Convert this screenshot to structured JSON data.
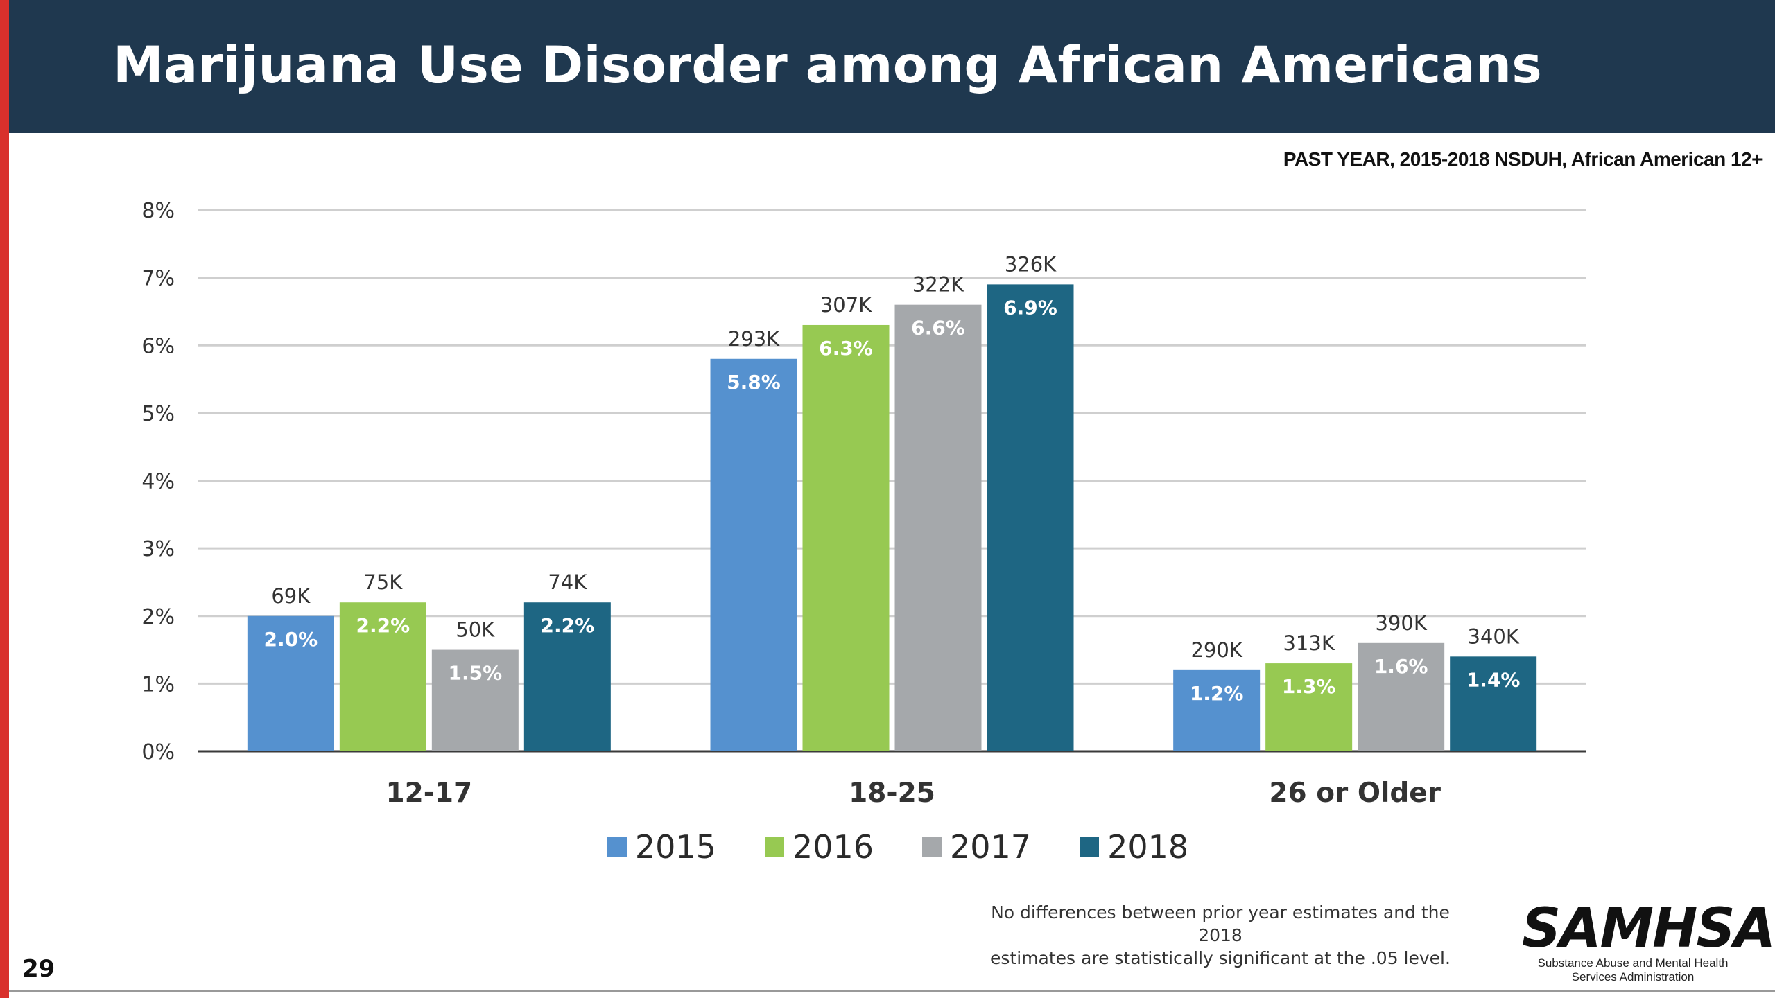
{
  "slide": {
    "title": "Marijuana Use Disorder among African Americans",
    "subtitle": "PAST YEAR, 2015-2018 NSDUH, African American 12+",
    "footnote_line1": "No differences between prior year estimates and the 2018",
    "footnote_line2": "estimates are statistically significant at the .05 level.",
    "logo_text": "SAMHSA",
    "logo_sub1": "Substance Abuse and Mental Health",
    "logo_sub2": "Services Administration",
    "page_number": "29"
  },
  "chart_data": {
    "type": "bar",
    "title": "Marijuana Use Disorder among African Americans",
    "subtitle": "PAST YEAR, 2015-2018 NSDUH, African American 12+",
    "categories": [
      "12-17",
      "18-25",
      "26 or Older"
    ],
    "ylim": [
      0,
      8
    ],
    "yticks": [
      "0%",
      "1%",
      "2%",
      "3%",
      "4%",
      "5%",
      "6%",
      "7%",
      "8%"
    ],
    "grid": true,
    "legend_position": "bottom",
    "series": [
      {
        "name": "2015",
        "color": "#5591cf",
        "values": [
          2.0,
          5.8,
          1.2
        ],
        "value_labels": [
          "2.0%",
          "5.8%",
          "1.2%"
        ],
        "count_labels": [
          "69K",
          "293K",
          "290K"
        ]
      },
      {
        "name": "2016",
        "color": "#97c952",
        "values": [
          2.2,
          6.3,
          1.3
        ],
        "value_labels": [
          "2.2%",
          "6.3%",
          "1.3%"
        ],
        "count_labels": [
          "75K",
          "307K",
          "313K"
        ]
      },
      {
        "name": "2017",
        "color": "#a5a8ab",
        "values": [
          1.5,
          6.6,
          1.6
        ],
        "value_labels": [
          "1.5%",
          "6.6%",
          "1.6%"
        ],
        "count_labels": [
          "50K",
          "322K",
          "390K"
        ]
      },
      {
        "name": "2018",
        "color": "#1e6683",
        "values": [
          2.2,
          6.9,
          1.4
        ],
        "value_labels": [
          "2.2%",
          "6.9%",
          "1.4%"
        ],
        "count_labels": [
          "74K",
          "326K",
          "340K"
        ]
      }
    ]
  }
}
